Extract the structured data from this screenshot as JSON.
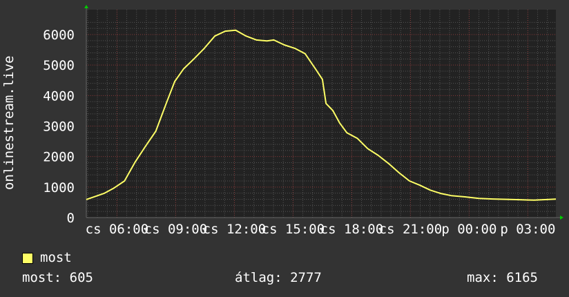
{
  "chart_data": {
    "type": "line",
    "ylabel": "onlinestream.live",
    "ylim": [
      0,
      6500
    ],
    "yticks": [
      "0",
      "1000",
      "2000",
      "3000",
      "4000",
      "5000",
      "6000"
    ],
    "xtick_labels": [
      "cs 06:00",
      "cs 09:00",
      "cs 12:00",
      "cs 15:00",
      "cs 18:00",
      "cs 21:00",
      "p 00:00",
      "p 03:00"
    ],
    "xrange": [
      "04:26",
      "04:26"
    ],
    "grid": true,
    "legend_position": "bottom-left",
    "series": [
      {
        "name": "most",
        "color": "#ffff66",
        "x": [
          "04:26",
          "05:20",
          "05:51",
          "06:23",
          "06:55",
          "07:27",
          "07:59",
          "08:31",
          "08:57",
          "09:24",
          "09:56",
          "10:28",
          "11:00",
          "11:32",
          "12:04",
          "12:36",
          "13:08",
          "13:40",
          "14:01",
          "14:33",
          "15:05",
          "15:37",
          "16:09",
          "16:30",
          "16:41",
          "17:02",
          "17:23",
          "17:45",
          "18:17",
          "18:49",
          "19:21",
          "19:53",
          "20:25",
          "20:57",
          "21:29",
          "22:01",
          "22:33",
          "23:05",
          "23:47",
          "00:30",
          "01:12",
          "02:16",
          "03:20",
          "04:26"
        ],
        "values": [
          590,
          790,
          970,
          1200,
          1810,
          2330,
          2830,
          3740,
          4460,
          4870,
          5200,
          5550,
          5950,
          6110,
          6140,
          5950,
          5820,
          5790,
          5820,
          5660,
          5550,
          5370,
          4870,
          4530,
          3740,
          3510,
          3100,
          2780,
          2600,
          2260,
          2040,
          1770,
          1470,
          1200,
          1060,
          900,
          790,
          720,
          680,
          630,
          610,
          590,
          570,
          605
        ]
      }
    ]
  },
  "legend": {
    "series_label": "most"
  },
  "stats": {
    "current": "most: 605",
    "average": "átlag: 2777",
    "max": "max: 6165"
  },
  "colors": {
    "background": "#333333",
    "plot_background": "#222222",
    "major_grid": "#8a3a3a",
    "minor_grid": "#555555",
    "line": "#ffff66",
    "arrow": "#00cc00"
  }
}
